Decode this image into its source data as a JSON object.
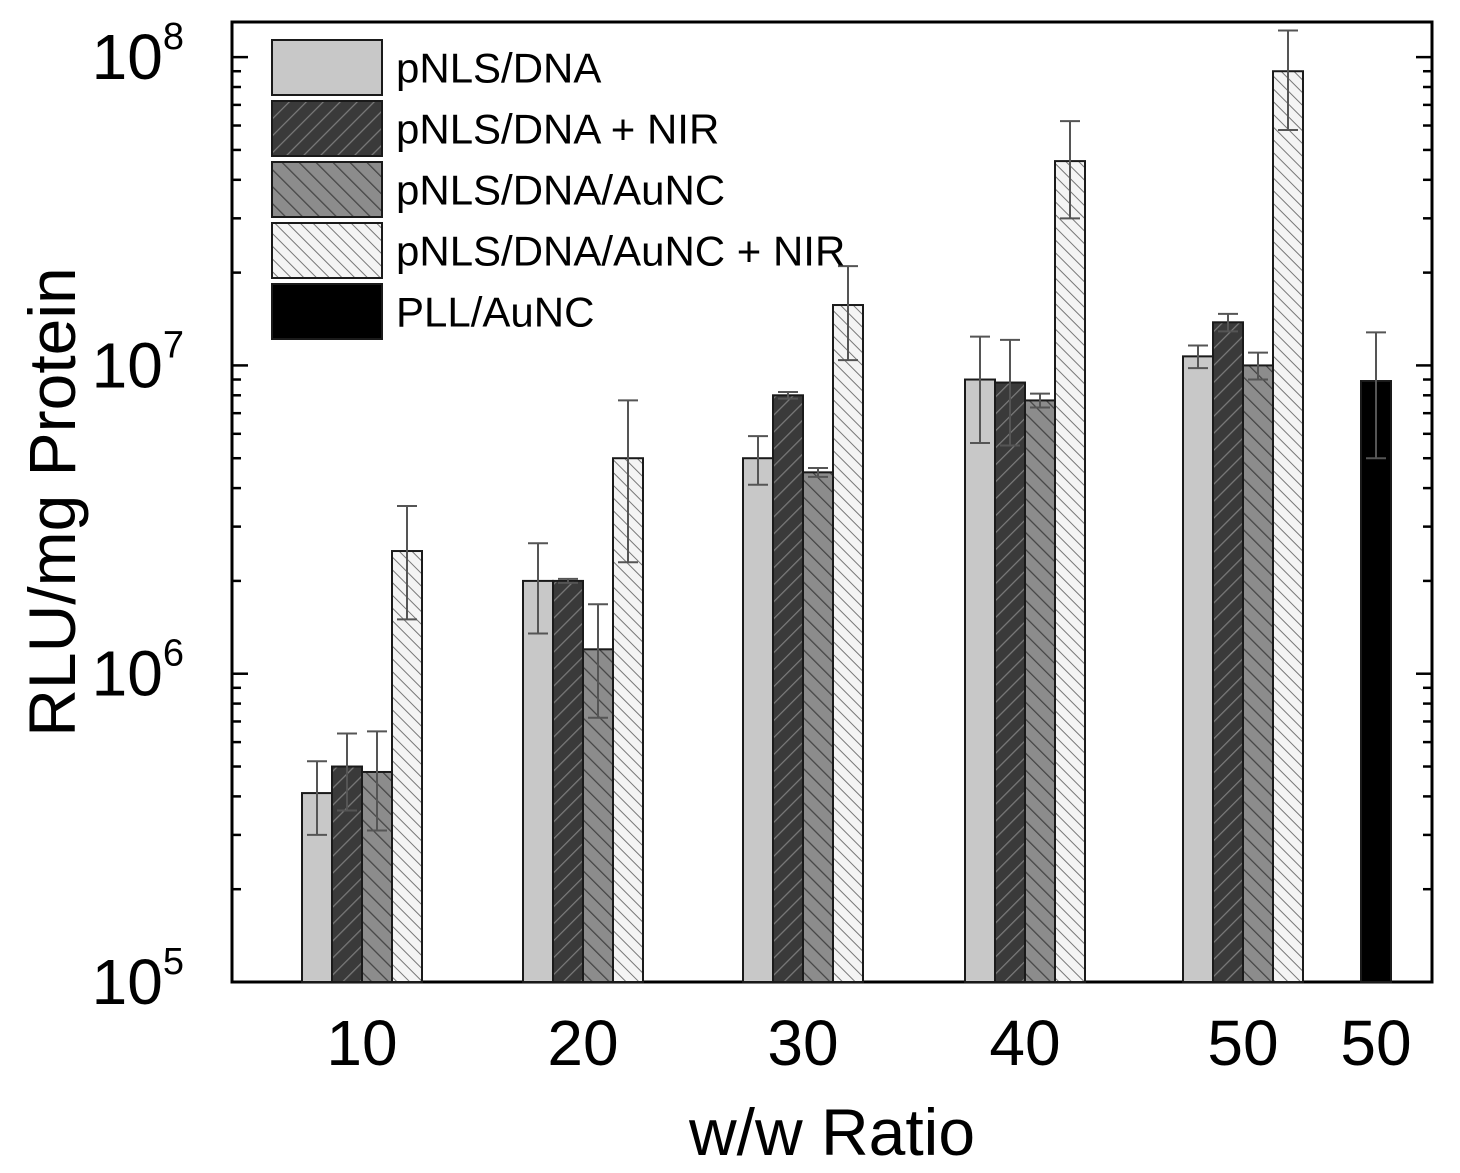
{
  "chart_data": {
    "type": "bar",
    "yscale": "log",
    "title": "",
    "xlabel": "w/w Ratio",
    "ylabel": "RLU/mg Protein",
    "ylim": [
      100000,
      130000000
    ],
    "yticks": [
      {
        "base": "10",
        "exp": "5"
      },
      {
        "base": "10",
        "exp": "6"
      },
      {
        "base": "10",
        "exp": "7"
      },
      {
        "base": "10",
        "exp": "8"
      }
    ],
    "categories": [
      "10",
      "20",
      "30",
      "40",
      "50",
      "50"
    ],
    "legend_position": "top-left",
    "series": [
      {
        "name": "pNLS/DNA",
        "fill": "#c8c8c8",
        "pattern": "none",
        "values": [
          410000,
          2000000,
          5000000,
          9000000,
          10700000,
          null
        ],
        "errors": [
          110000,
          650000,
          900000,
          3400000,
          900000,
          null
        ]
      },
      {
        "name": "pNLS/DNA + NIR",
        "fill": "#3a3a3a",
        "pattern": "hatch-right",
        "values": [
          500000,
          2000000,
          8000000,
          8800000,
          13800000,
          null
        ],
        "errors": [
          140000,
          30000,
          200000,
          3300000,
          900000,
          null
        ]
      },
      {
        "name": "pNLS/DNA/AuNC",
        "fill": "#8c8c8c",
        "pattern": "hatch-left",
        "values": [
          480000,
          1200000,
          4500000,
          7700000,
          10000000,
          null
        ],
        "errors": [
          170000,
          480000,
          150000,
          400000,
          1000000,
          null
        ]
      },
      {
        "name": "pNLS/DNA/AuNC + NIR",
        "fill": "#f2f2f2",
        "pattern": "hatch-left-fine",
        "values": [
          2500000,
          5000000,
          15700000,
          46000000,
          90000000,
          null
        ],
        "errors": [
          1000000,
          2700000,
          5300000,
          16000000,
          32000000,
          null
        ]
      },
      {
        "name": "PLL/AuNC",
        "fill": "#000000",
        "pattern": "none",
        "values": [
          null,
          null,
          null,
          null,
          null,
          8900000
        ],
        "errors": [
          null,
          null,
          null,
          null,
          null,
          3900000
        ]
      }
    ]
  }
}
